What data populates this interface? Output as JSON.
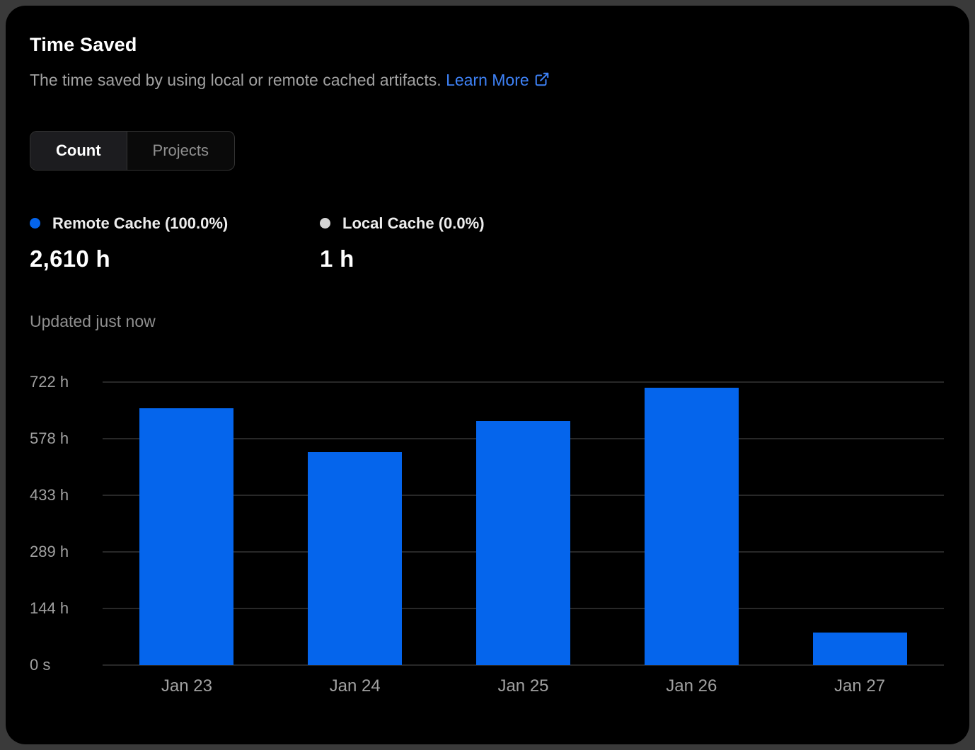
{
  "card": {
    "title": "Time Saved",
    "subtitle": "The time saved by using local or remote cached artifacts.",
    "learn_more_label": "Learn More",
    "updated_text": "Updated just now"
  },
  "toggle": {
    "options": [
      {
        "label": "Count",
        "active": true
      },
      {
        "label": "Projects",
        "active": false
      }
    ],
    "selected": "Count"
  },
  "stats": [
    {
      "label": "Remote Cache (100.0%)",
      "value": "2,610 h",
      "color": "#0565ec"
    },
    {
      "label": "Local Cache (0.0%)",
      "value": "1 h",
      "color": "#d4d4d4"
    }
  ],
  "colors": {
    "accent_blue": "#0565ec",
    "local_gray": "#d4d4d4",
    "link_blue": "#3e82f7",
    "gridline": "#282828"
  },
  "icons": {
    "external_link": "external-link-icon",
    "remote_dot": "remote-cache-dot",
    "local_dot": "local-cache-dot"
  },
  "chart_data": {
    "type": "bar",
    "title": "Time Saved",
    "categories": [
      "Jan 23",
      "Jan 24",
      "Jan 25",
      "Jan 26",
      "Jan 27"
    ],
    "series": [
      {
        "name": "Remote Cache",
        "values": [
          655,
          543,
          623,
          708,
          83
        ],
        "color": "#0565ec"
      }
    ],
    "unit": "h",
    "xlabel": "",
    "ylabel": "",
    "ylim": [
      0,
      722
    ],
    "grid": true,
    "legend_position": "top",
    "yticks": [
      {
        "value": 0,
        "label": "0 s"
      },
      {
        "value": 144,
        "label": "144 h"
      },
      {
        "value": 289,
        "label": "289 h"
      },
      {
        "value": 433,
        "label": "433 h"
      },
      {
        "value": 578,
        "label": "578 h"
      },
      {
        "value": 722,
        "label": "722 h"
      }
    ]
  }
}
